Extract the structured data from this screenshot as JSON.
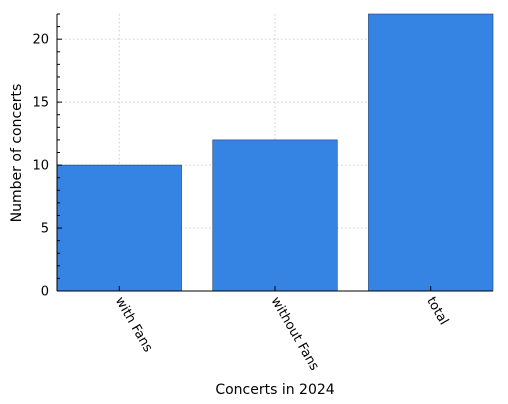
{
  "chart_data": {
    "type": "bar",
    "categories": [
      "with Fans",
      "without Fans",
      "total"
    ],
    "values": [
      10,
      12,
      22
    ],
    "xlabel": "Concerts in 2024",
    "ylabel": "Number of concerts",
    "ylim": [
      0,
      22
    ],
    "yticks": [
      0,
      5,
      10,
      15,
      20
    ],
    "grid": true,
    "bar_color": "#3584e4"
  }
}
